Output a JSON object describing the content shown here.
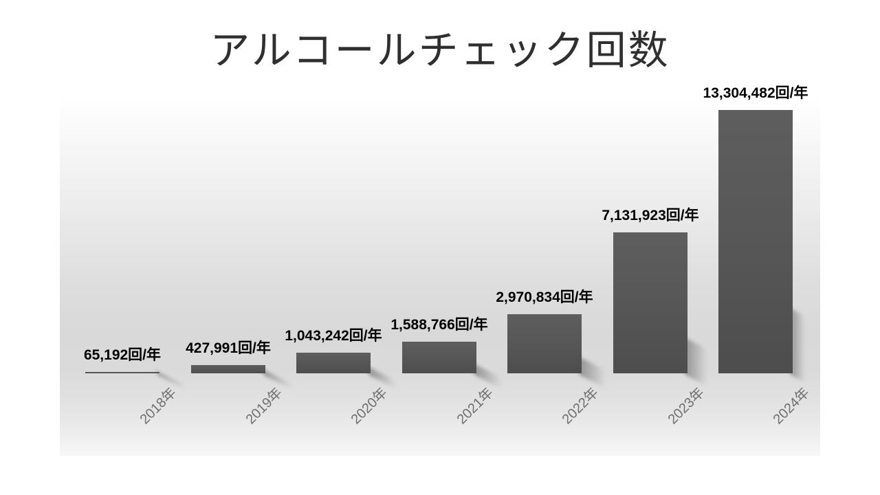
{
  "slide": {
    "title": "アルコールチェック回数"
  },
  "chart_data": {
    "type": "bar",
    "title": "アルコールチェック回数",
    "categories": [
      "2018年",
      "2019年",
      "2020年",
      "2021年",
      "2022年",
      "2023年",
      "2024年"
    ],
    "values": [
      65192,
      427991,
      1043242,
      1588766,
      2970834,
      7131923,
      13304482
    ],
    "data_labels": [
      "65,192回/年",
      "427,991回/年",
      "1,043,242回/年",
      "1,588,766回/年",
      "2,970,834回/年",
      "7,131,923回/年",
      "13,304,482回/年"
    ],
    "unit": "回/年",
    "xlabel": "",
    "ylabel": "",
    "ylim": [
      0,
      13304482
    ],
    "grid": false,
    "legend": "none",
    "colors": {
      "bar_top": "#5e5e5e",
      "bar_bottom": "#4d4d4d",
      "data_label": "#000000",
      "axis_label": "#6f6f6f",
      "title": "#2f2f2f",
      "plot_bg_mid": "#d9d9da"
    }
  }
}
